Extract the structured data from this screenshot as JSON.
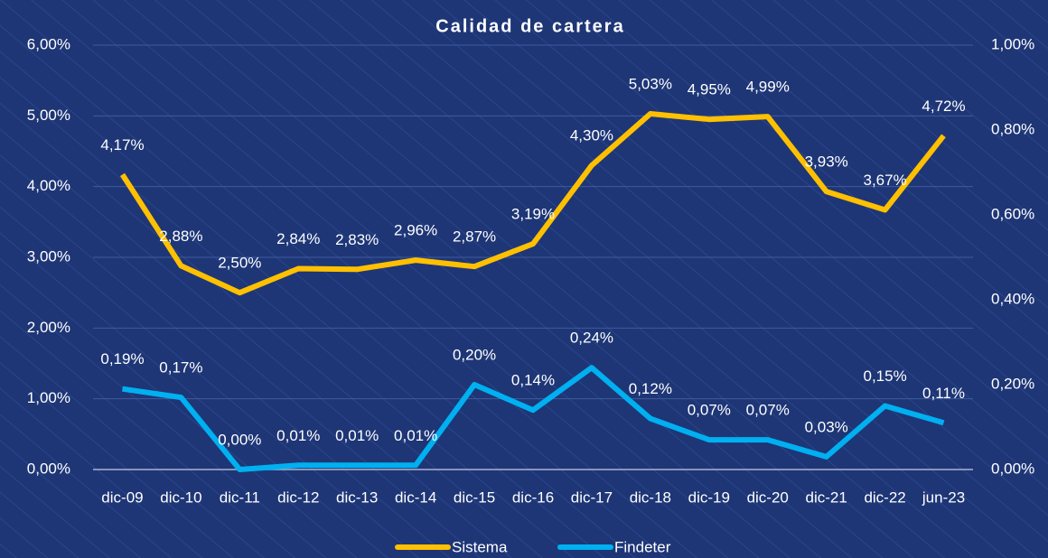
{
  "chart_data": {
    "type": "line",
    "title": "Calidad de cartera",
    "categories": [
      "dic-09",
      "dic-10",
      "dic-11",
      "dic-12",
      "dic-13",
      "dic-14",
      "dic-15",
      "dic-16",
      "dic-17",
      "dic-18",
      "dic-19",
      "dic-20",
      "dic-21",
      "dic-22",
      "jun-23"
    ],
    "series": [
      {
        "name": "Sistema",
        "color": "#ffc000",
        "axis": "y",
        "values": [
          4.17,
          2.88,
          2.5,
          2.84,
          2.83,
          2.96,
          2.87,
          3.19,
          4.3,
          5.03,
          4.95,
          4.99,
          3.93,
          3.67,
          4.72
        ],
        "value_labels": [
          "4,17%",
          "2,88%",
          "2,50%",
          "2,84%",
          "2,83%",
          "2,96%",
          "2,87%",
          "3,19%",
          "4,30%",
          "5,03%",
          "4,95%",
          "4,99%",
          "3,93%",
          "3,67%",
          "4,72%"
        ]
      },
      {
        "name": "Findeter",
        "color": "#00b0f0",
        "axis": "y2",
        "values": [
          0.19,
          0.17,
          0.0,
          0.01,
          0.01,
          0.01,
          0.2,
          0.14,
          0.24,
          0.12,
          0.07,
          0.07,
          0.03,
          0.15,
          0.11
        ],
        "value_labels": [
          "0,19%",
          "0,17%",
          "0,00%",
          "0,01%",
          "0,01%",
          "0,01%",
          "0,20%",
          "0,14%",
          "0,24%",
          "0,12%",
          "0,07%",
          "0,07%",
          "0,03%",
          "0,15%",
          "0,11%"
        ]
      }
    ],
    "ylim": [
      0,
      6
    ],
    "yticks": [
      {
        "value": 0,
        "label": "0,00%"
      },
      {
        "value": 1,
        "label": "1,00%"
      },
      {
        "value": 2,
        "label": "2,00%"
      },
      {
        "value": 3,
        "label": "3,00%"
      },
      {
        "value": 4,
        "label": "4,00%"
      },
      {
        "value": 5,
        "label": "5,00%"
      },
      {
        "value": 6,
        "label": "6,00%"
      }
    ],
    "y2lim": [
      0,
      1
    ],
    "y2ticks": [
      {
        "value": 0,
        "label": "0,00%"
      },
      {
        "value": 0.2,
        "label": "0,20%"
      },
      {
        "value": 0.4,
        "label": "0,40%"
      },
      {
        "value": 0.6,
        "label": "0,60%"
      },
      {
        "value": 0.8,
        "label": "0,80%"
      },
      {
        "value": 1,
        "label": "1,00%"
      }
    ],
    "grid": true,
    "legend": "bottom"
  }
}
